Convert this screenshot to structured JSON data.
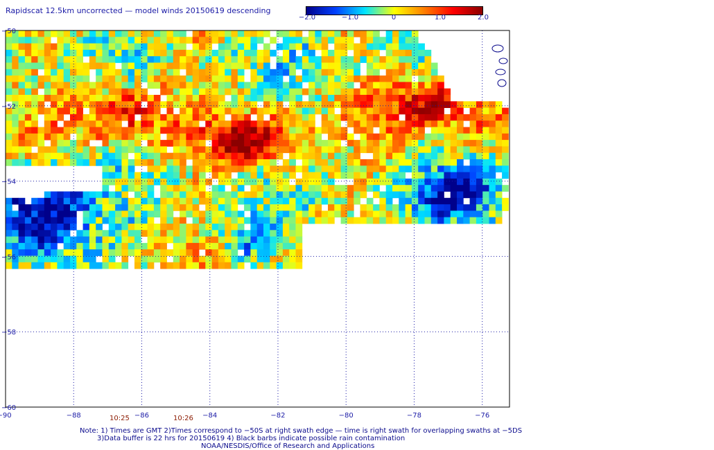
{
  "title": "Rapidscat 12.5km uncorrected — model winds 20150619 descending",
  "colorbar": {
    "tick_labels": [
      "−2.0",
      "−1.0",
      "0",
      "1.0",
      "2.0"
    ],
    "tick_values": [
      -2.0,
      -1.0,
      0,
      1.0,
      2.0
    ],
    "range": [
      -2.0,
      2.0
    ],
    "colors": [
      "#00008b",
      "#0040ff",
      "#00e5ff",
      "#ffff00",
      "#ff8000",
      "#ff0000",
      "#8b0000"
    ]
  },
  "map": {
    "lon_range": [
      -90,
      -75.2
    ],
    "lat_range": [
      -60,
      -50
    ],
    "lon_ticks": [
      -88,
      -86,
      -84,
      -82,
      -80,
      -78,
      -76
    ],
    "lat_ticks": [
      -52,
      -54,
      -56,
      -58
    ],
    "lon_labels": [
      "−88",
      "−86",
      "−84",
      "−82",
      "−80",
      "−78",
      "−76"
    ],
    "lat_labels": [
      "−50",
      "−52",
      "−54",
      "−56",
      "−58",
      "−60"
    ],
    "corner_lon_label": "−90",
    "coast_color": "#0a0a8c",
    "grid_color": "#1a1aa6"
  },
  "times": [
    "10:25",
    "10:26"
  ],
  "notes": [
    "Note: 1) Times are GMT 2)Times correspond to −50S at right swath edge — time is right swath for overlapping swaths at −5DS",
    "3)Data buffer is 22 hrs for 20150619 4) Black barbs indicate possible rain contamination",
    "NOAA/NESDIS/Office of Research and Applications"
  ]
}
